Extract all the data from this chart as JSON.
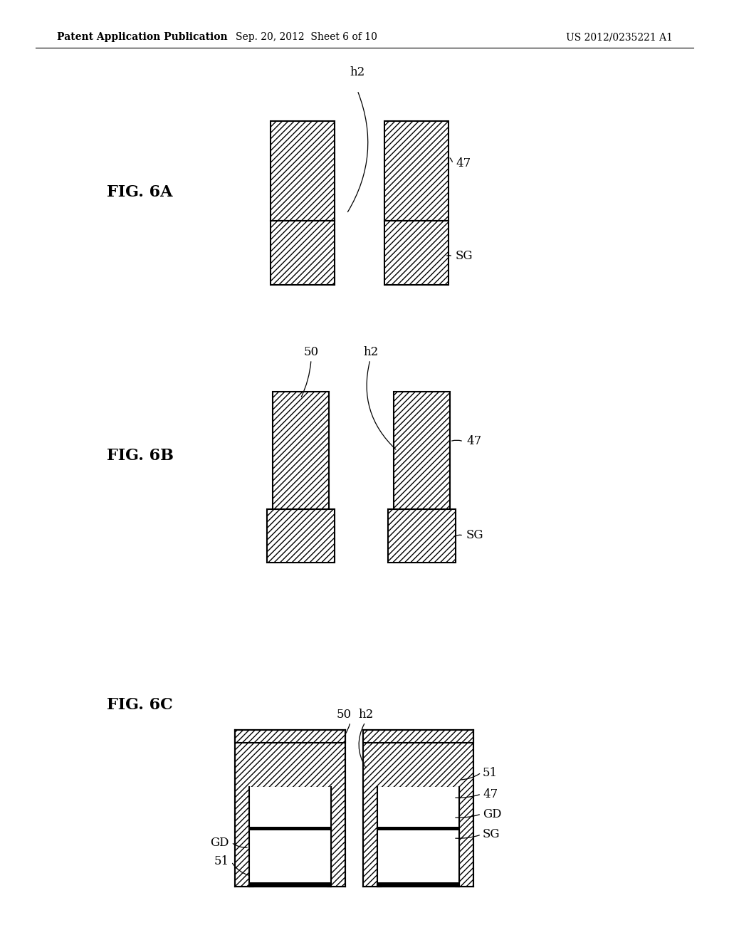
{
  "header_left": "Patent Application Publication",
  "header_mid": "Sep. 20, 2012  Sheet 6 of 10",
  "header_right": "US 2012/0235221 A1",
  "bg_color": "#ffffff",
  "line_color": "#000000"
}
